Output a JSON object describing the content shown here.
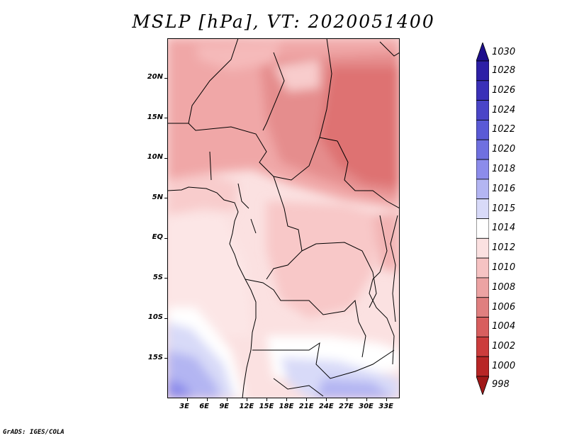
{
  "title": "MSLP [hPa], VT: 2020051400",
  "credit": "GrADS: IGES/COLA",
  "map": {
    "lon_range": [
      0,
      35
    ],
    "lat_range": [
      -20,
      25
    ],
    "x_ticks": [
      "3E",
      "6E",
      "9E",
      "12E",
      "15E",
      "18E",
      "21E",
      "24E",
      "27E",
      "30E",
      "33E"
    ],
    "x_tick_values": [
      3,
      6,
      9,
      12,
      15,
      18,
      21,
      24,
      27,
      30,
      33
    ],
    "y_ticks": [
      "20N",
      "15N",
      "10N",
      "5N",
      "EQ",
      "5S",
      "10S",
      "15S"
    ],
    "y_tick_values": [
      20,
      15,
      10,
      5,
      0,
      -5,
      -10,
      -15
    ]
  },
  "colorbar": {
    "labels": [
      "1030",
      "1028",
      "1026",
      "1024",
      "1022",
      "1020",
      "1018",
      "1016",
      "1015",
      "1014",
      "1012",
      "1010",
      "1008",
      "1006",
      "1004",
      "1002",
      "1000",
      "998"
    ],
    "colors": [
      "#1e0f8c",
      "#2d1fa6",
      "#3a30b8",
      "#4a45c8",
      "#5a5ad6",
      "#6f70e0",
      "#8c8ceb",
      "#b3b5f2",
      "#d8daf8",
      "#ffffff",
      "#fbe1e1",
      "#f6c3c3",
      "#eca3a3",
      "#e07f7f",
      "#d85e5e",
      "#cc3c3c",
      "#b82626",
      "#a01818"
    ]
  }
}
